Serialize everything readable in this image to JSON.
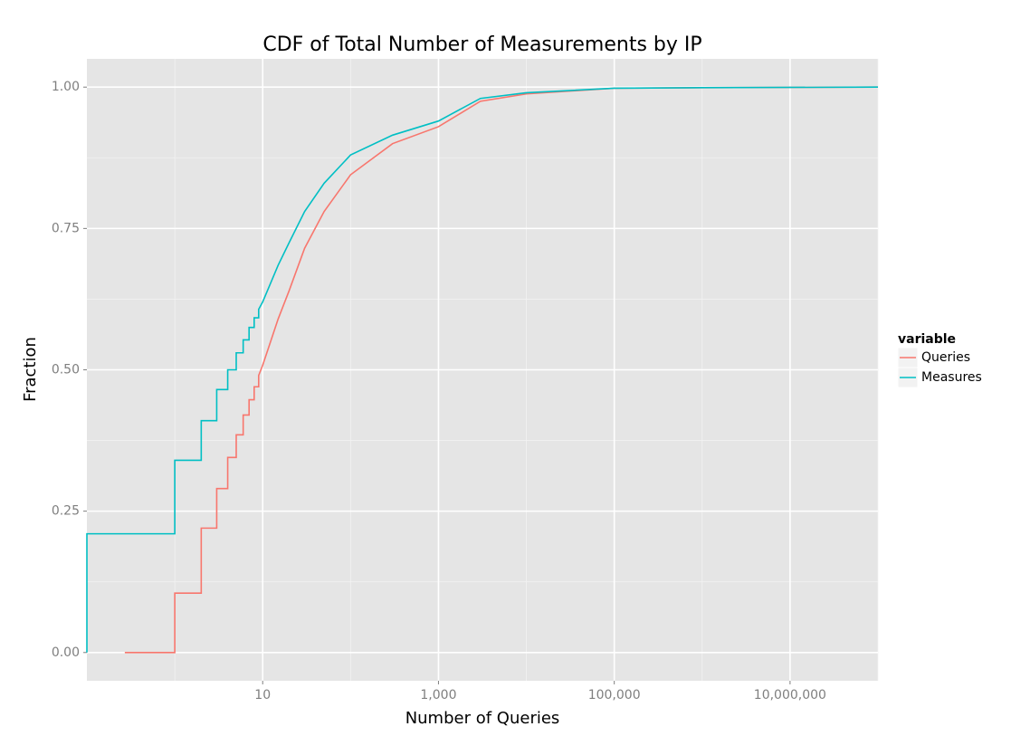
{
  "chart_data": {
    "type": "line",
    "title": "CDF of Total Number of Measurements by IP",
    "x_label": "Number of Queries",
    "y_label": "Fraction",
    "legend_title": "variable",
    "legend_position": "right",
    "log_x": true,
    "grid": true,
    "xlim": [
      0.1,
      100000000
    ],
    "ylim": [
      -0.05,
      1.05
    ],
    "xticks": [
      10,
      {
        "value": 1000,
        "label": "1,000"
      },
      {
        "value": 100000,
        "label": "100,000"
      },
      {
        "value": 10000000,
        "label": "10,000,000"
      }
    ],
    "yticks": [
      {
        "value": 0,
        "label": "0.00"
      },
      {
        "value": 0.25,
        "label": "0.25"
      },
      {
        "value": 0.5,
        "label": "0.50"
      },
      {
        "value": 0.75,
        "label": "0.75"
      },
      {
        "value": 1,
        "label": "1.00"
      }
    ],
    "series": [
      {
        "name": "Queries",
        "color": "#F8766D",
        "x": [
          0.27,
          1,
          1,
          2,
          2,
          3,
          3,
          4,
          4,
          5,
          5,
          6,
          6,
          7,
          7,
          8,
          8,
          9,
          9,
          10,
          15,
          20,
          30,
          50,
          100,
          300,
          1000,
          3000,
          10000,
          100000,
          1000000,
          100000000
        ],
        "values": [
          0,
          0,
          0.105,
          0.105,
          0.22,
          0.22,
          0.29,
          0.29,
          0.345,
          0.345,
          0.385,
          0.385,
          0.42,
          0.42,
          0.447,
          0.447,
          0.47,
          0.47,
          0.49,
          0.508,
          0.59,
          0.64,
          0.715,
          0.78,
          0.845,
          0.9,
          0.93,
          0.975,
          0.988,
          0.998,
          0.999,
          1
        ]
      },
      {
        "name": "Measures",
        "color": "#00BFC4",
        "x": [
          0.1,
          0.1,
          1,
          1,
          2,
          2,
          3,
          3,
          4,
          4,
          5,
          5,
          6,
          6,
          7,
          7,
          8,
          8,
          9,
          9,
          10,
          15,
          20,
          30,
          50,
          100,
          300,
          1000,
          3000,
          10000,
          100000,
          1000000,
          100000000
        ],
        "values": [
          0,
          0.21,
          0.21,
          0.34,
          0.34,
          0.41,
          0.41,
          0.465,
          0.465,
          0.5,
          0.5,
          0.53,
          0.53,
          0.553,
          0.553,
          0.575,
          0.575,
          0.592,
          0.592,
          0.607,
          0.62,
          0.685,
          0.725,
          0.78,
          0.83,
          0.88,
          0.915,
          0.94,
          0.98,
          0.99,
          0.998,
          0.999,
          1
        ]
      }
    ]
  }
}
